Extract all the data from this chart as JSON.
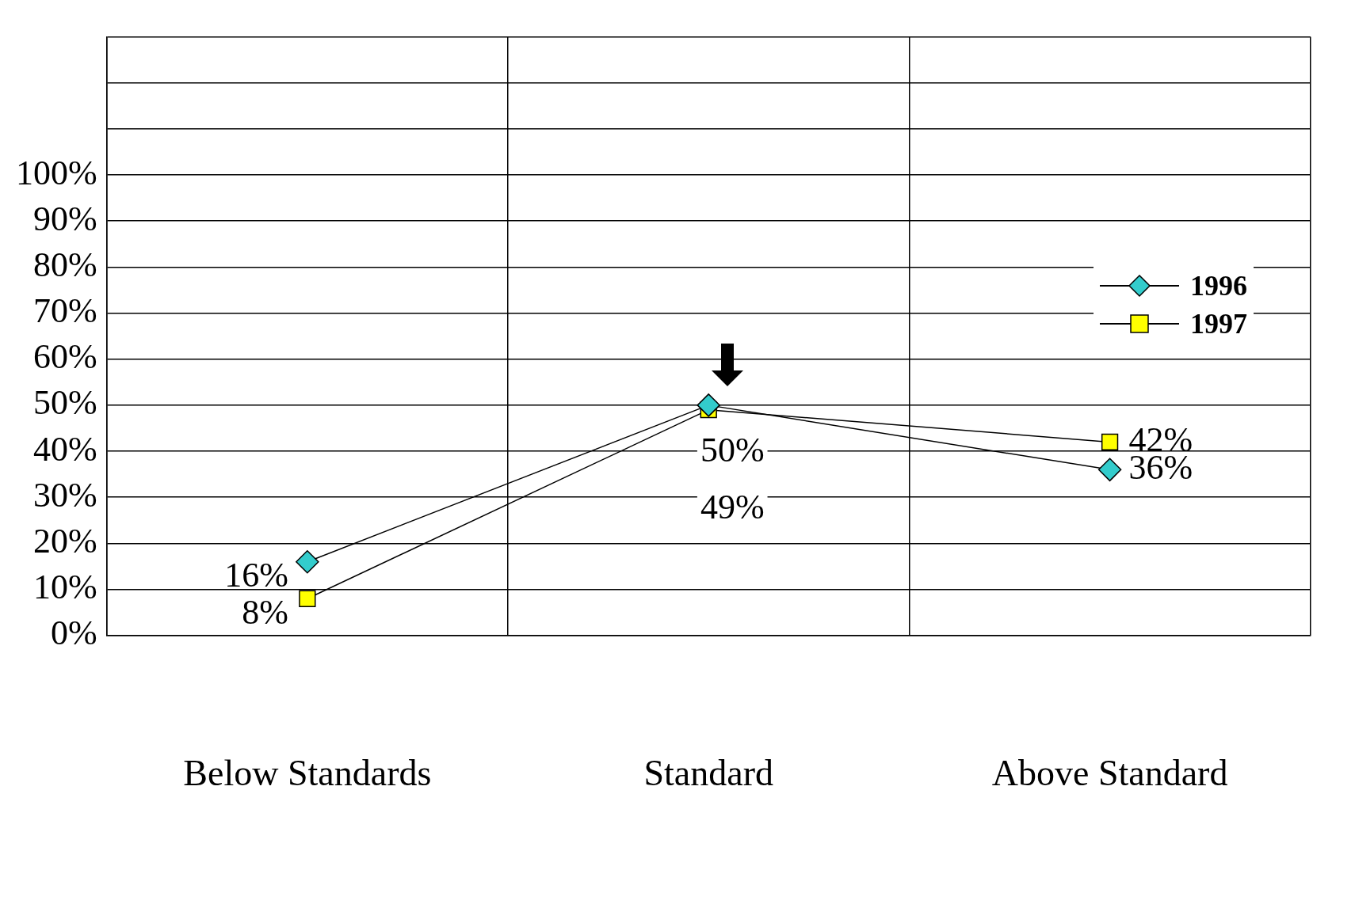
{
  "chart_data": {
    "type": "line",
    "categories": [
      "Below Standards",
      "Standard",
      "Above Standard"
    ],
    "series": [
      {
        "name": "1996",
        "color": "#33cccc",
        "marker": "diamond",
        "values": [
          16,
          50,
          36
        ],
        "value_labels": [
          "16%",
          "50%",
          "36%"
        ]
      },
      {
        "name": "1997",
        "color": "#ffff00",
        "marker": "square",
        "values": [
          8,
          49,
          42
        ],
        "value_labels": [
          "8%",
          "49%",
          "42%"
        ]
      }
    ],
    "ylim": [
      0,
      130
    ],
    "yticks": [
      {
        "value": 0,
        "label": "0%"
      },
      {
        "value": 10,
        "label": "10%"
      },
      {
        "value": 20,
        "label": "20%"
      },
      {
        "value": 30,
        "label": "30%"
      },
      {
        "value": 40,
        "label": "40%"
      },
      {
        "value": 50,
        "label": "50%"
      },
      {
        "value": 60,
        "label": "60%"
      },
      {
        "value": 70,
        "label": "70%"
      },
      {
        "value": 80,
        "label": "80%"
      },
      {
        "value": 90,
        "label": "90%"
      },
      {
        "value": 100,
        "label": "100%"
      },
      {
        "value": 110,
        "label": null
      },
      {
        "value": 120,
        "label": null
      },
      {
        "value": 130,
        "label": null
      }
    ],
    "grid": true,
    "legend": "top right",
    "line_style": "solid"
  }
}
